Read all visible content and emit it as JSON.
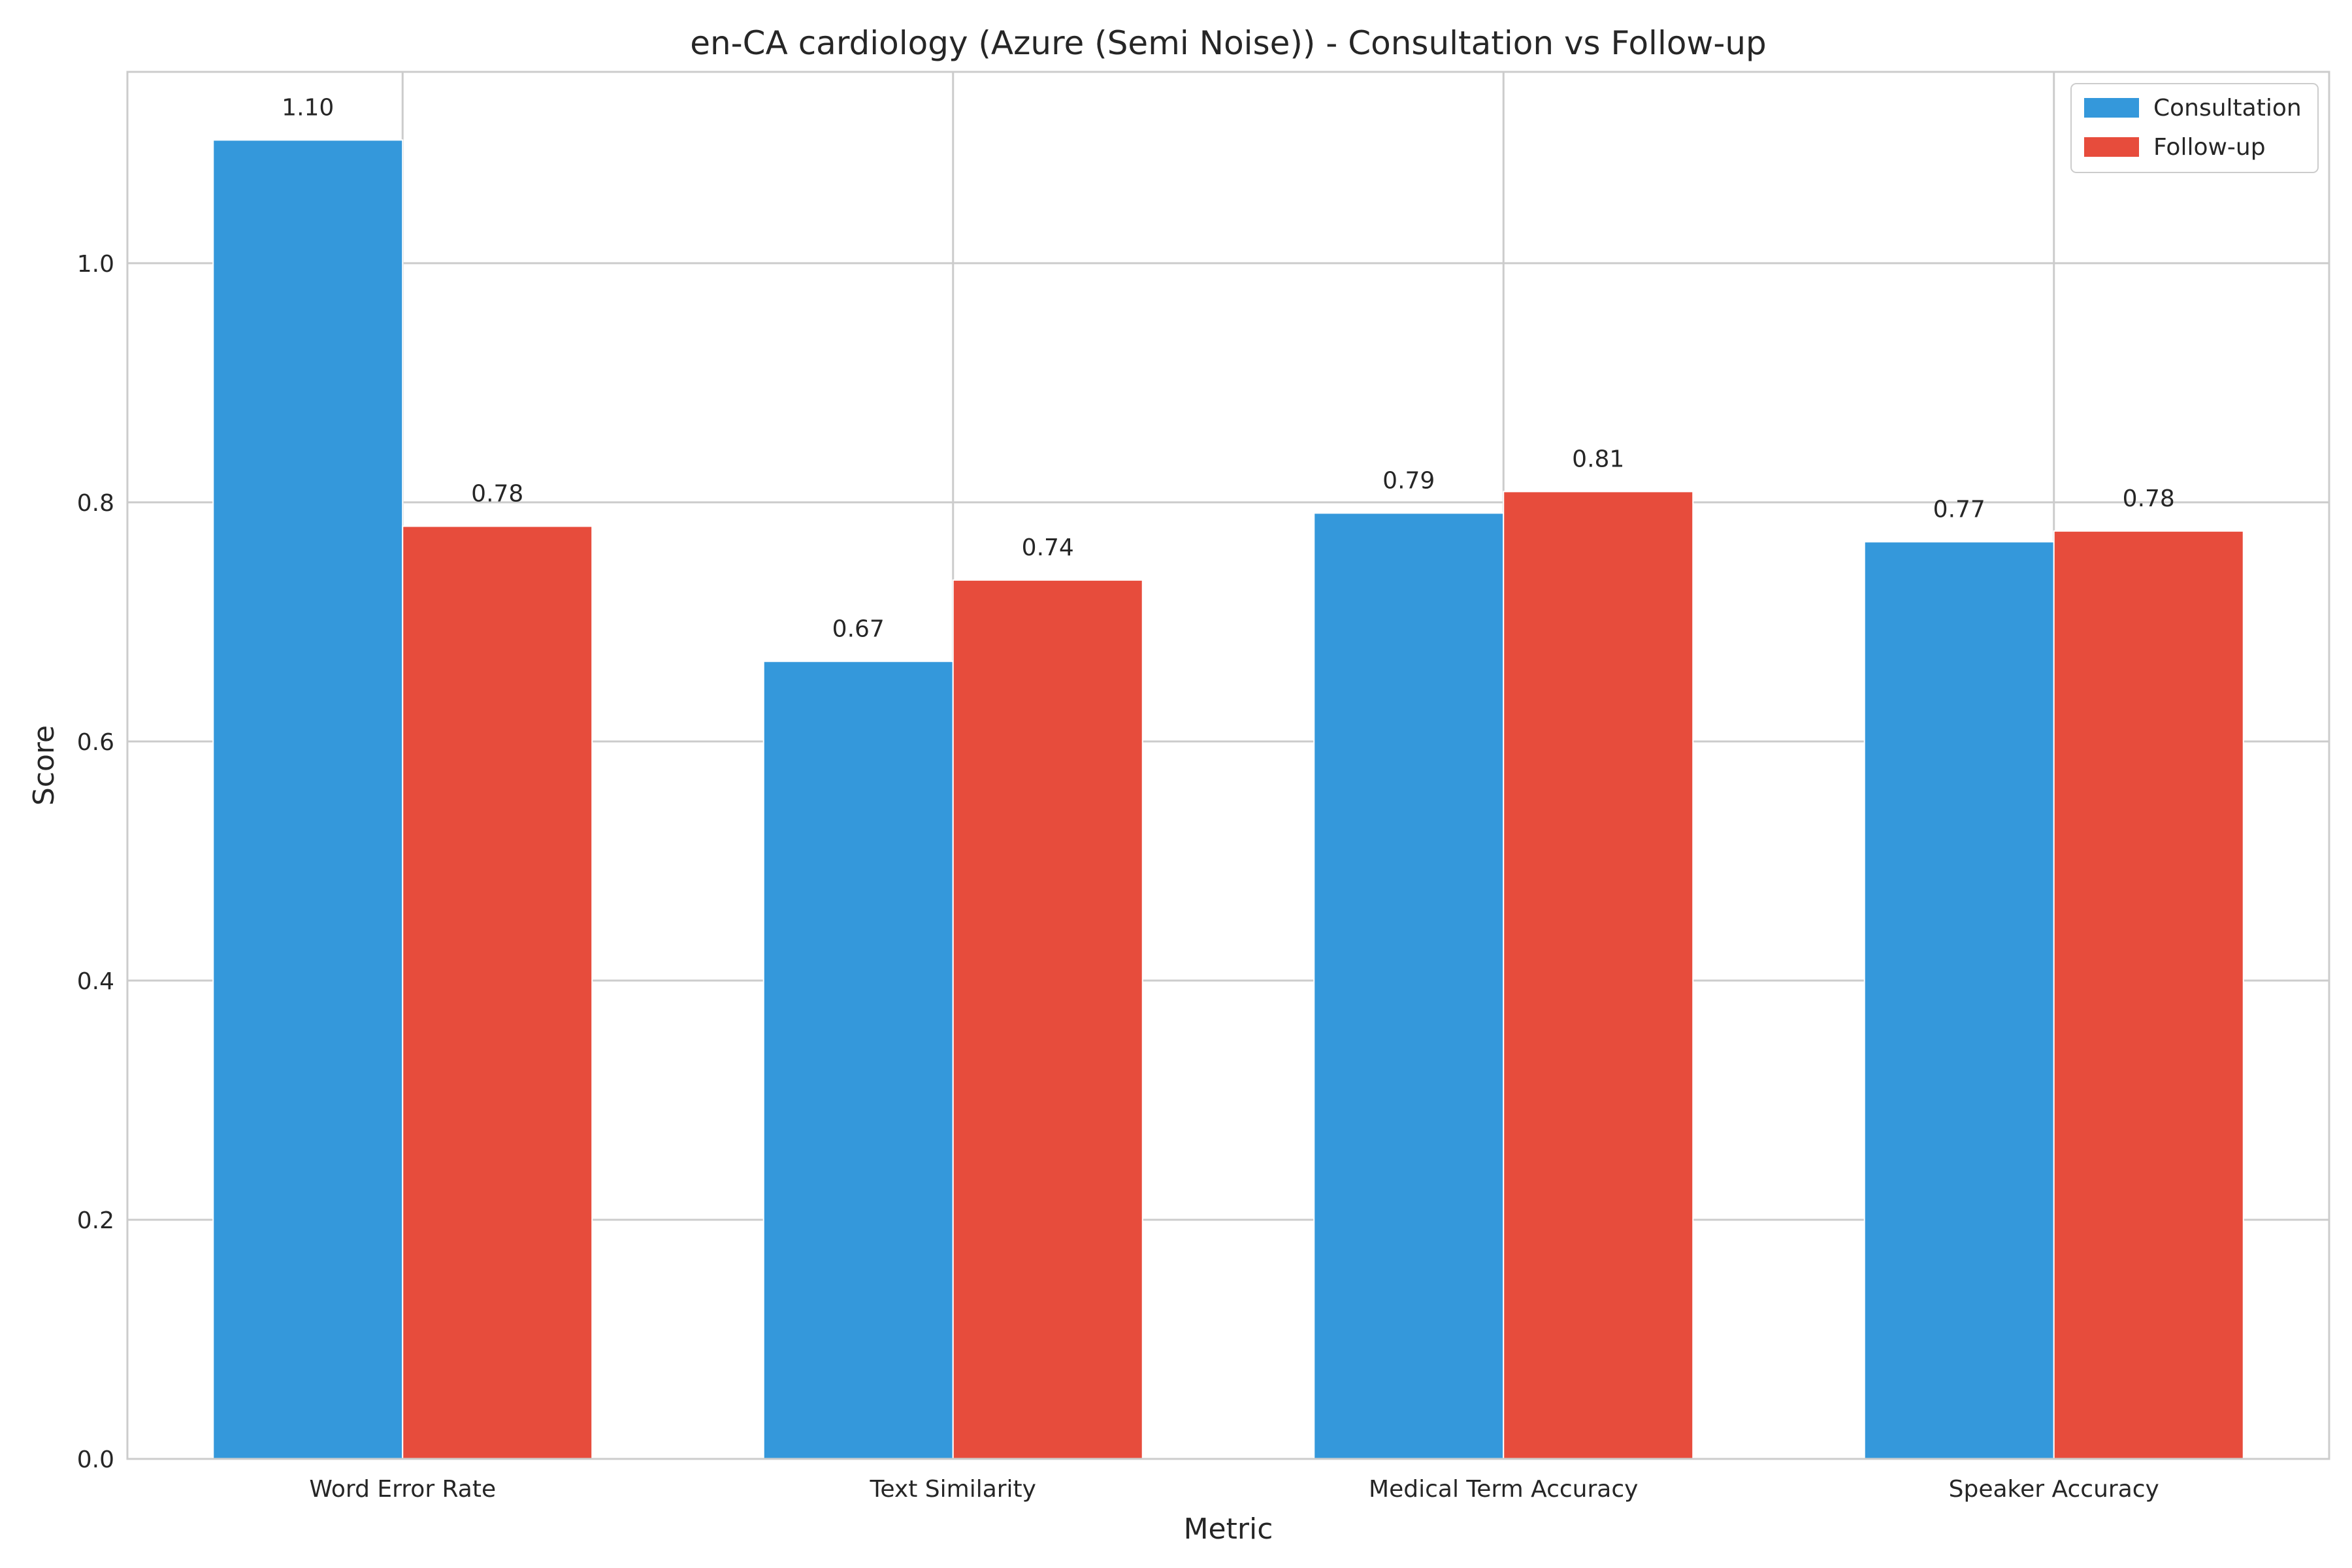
{
  "chart_data": {
    "type": "bar",
    "title": "en-CA cardiology (Azure (Semi Noise)) - Consultation vs Follow-up",
    "xlabel": "Metric",
    "ylabel": "Score",
    "ylim": [
      0,
      1.16
    ],
    "yticks": [
      "0.0",
      "0.2",
      "0.4",
      "0.6",
      "0.8",
      "1.0"
    ],
    "grid": true,
    "legend_position": "top-right",
    "categories": [
      "Word Error Rate",
      "Text Similarity",
      "Medical Term Accuracy",
      "Speaker Accuracy"
    ],
    "series": [
      {
        "name": "Consultation",
        "color": "#3498db",
        "values": [
          1.103,
          0.667,
          0.791,
          0.767
        ],
        "labels": [
          "1.10",
          "0.67",
          "0.79",
          "0.77"
        ]
      },
      {
        "name": "Follow-up",
        "color": "#e74c3c",
        "values": [
          0.78,
          0.735,
          0.809,
          0.776
        ],
        "labels": [
          "0.78",
          "0.74",
          "0.81",
          "0.78"
        ]
      }
    ]
  }
}
